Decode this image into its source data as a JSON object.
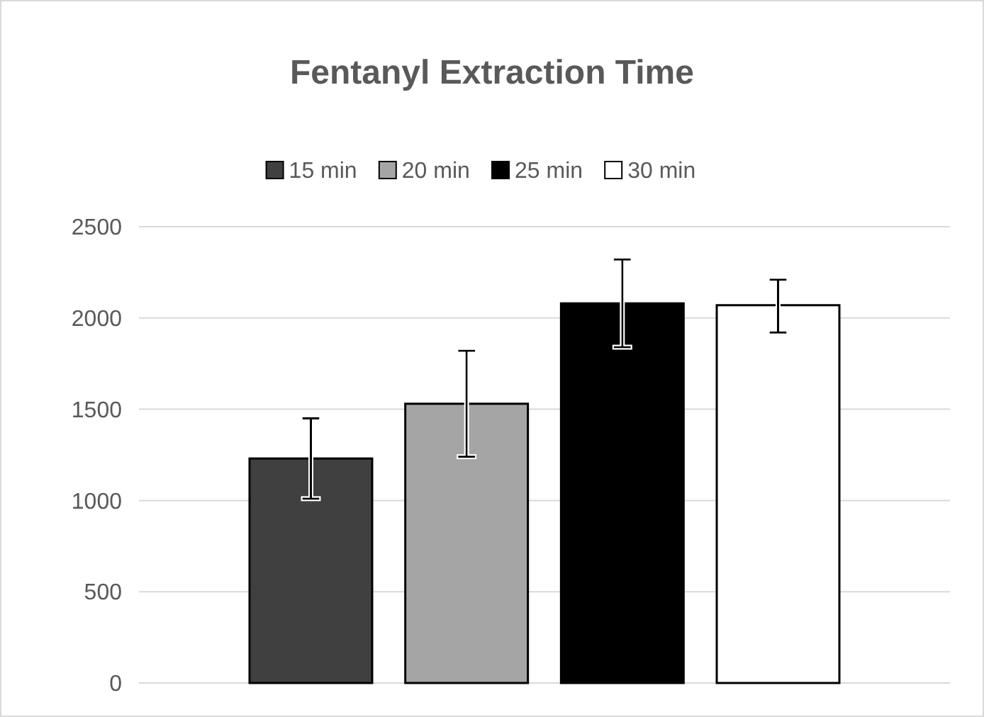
{
  "chart_data": {
    "type": "bar",
    "title": "Fentanyl Extraction Time",
    "categories": [
      null
    ],
    "series": [
      {
        "name": "15 min",
        "color": "#404040",
        "values": [
          1230
        ],
        "errors": [
          [
            1010,
            1450
          ]
        ]
      },
      {
        "name": "20 min",
        "color": "#a5a5a5",
        "values": [
          1530
        ],
        "errors": [
          [
            1240,
            1820
          ]
        ]
      },
      {
        "name": "25 min",
        "color": "#000000",
        "values": [
          2080
        ],
        "errors": [
          [
            1840,
            2320
          ]
        ]
      },
      {
        "name": "30 min",
        "color": "#ffffff",
        "values": [
          2070
        ],
        "errors": [
          [
            1920,
            2210
          ]
        ]
      }
    ],
    "ylim": [
      0,
      2500
    ],
    "yticks": [
      0,
      500,
      1000,
      1500,
      2000,
      2500
    ],
    "grid": "y",
    "legend": "top"
  }
}
